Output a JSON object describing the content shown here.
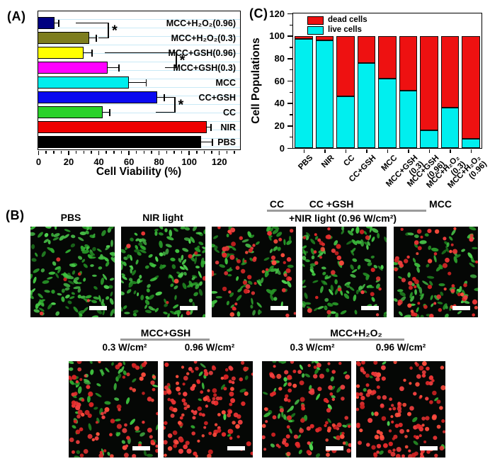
{
  "panels": {
    "a": "(A)",
    "b": "(B)",
    "c": "(C)"
  },
  "colors": {
    "grid_stripe": "#c9e9f6",
    "dead_cells": "#ee1111",
    "live_cells": "#00efef",
    "header_underline": "#9b9b9b",
    "scale_bar": "#ffffff"
  },
  "chart_data": [
    {
      "id": "A",
      "type": "bar",
      "orientation": "horizontal",
      "xlabel": "Cell Viability (%)",
      "categories": [
        "MCC+H₂O₂(0.96)",
        "MCC+H₂O₂(0.3)",
        "MCC+GSH(0.96)",
        "MCC+GSH(0.3)",
        "MCC",
        "CC+GSH",
        "CC",
        "NIR",
        "PBS"
      ],
      "values": [
        11,
        34,
        30,
        46,
        60,
        79,
        43,
        112,
        108
      ],
      "errors": [
        3,
        5,
        6,
        8,
        12,
        5,
        5,
        3,
        8
      ],
      "colors": [
        "#000080",
        "#7d7d1e",
        "#ffff00",
        "#ff00ff",
        "#00eeee",
        "#0a0af0",
        "#2bd22b",
        "#ee0000",
        "#000000"
      ],
      "xlim": [
        0,
        134
      ],
      "x_ticks": [
        0,
        20,
        40,
        60,
        80,
        100,
        120
      ],
      "x_minor_step": 5,
      "grid": "light-blue horizontal stripes",
      "significance": [
        {
          "pair": [
            "MCC+H₂O₂(0.96)",
            "MCC+H₂O₂(0.3)"
          ],
          "rowA": 0,
          "rowB": 1,
          "xStartA": 25,
          "xStartB": 40,
          "xEnd": 47,
          "symbol": "*"
        },
        {
          "pair": [
            "MCC+GSH(0.96)",
            "MCC+GSH(0.3)"
          ],
          "rowA": 2,
          "rowB": 3,
          "xStartA": 44,
          "xStartB": 84,
          "xEnd": 92,
          "symbol": "*"
        },
        {
          "pair": [
            "CC+GSH",
            "CC"
          ],
          "rowA": 5,
          "rowB": 6,
          "xStartA": 79,
          "xStartB": 78,
          "xEnd": 91,
          "symbol": "*"
        }
      ]
    },
    {
      "id": "C",
      "type": "stacked-bar",
      "orientation": "vertical",
      "ylabel": "Cell Populations",
      "categories": [
        "PBS",
        "NIR",
        "CC",
        "CC+GSH",
        "MCC",
        "MCC+GSH\n(0.3)",
        "MCC+GSH\n(0.96)",
        "MCC+H₂O₂\n(0.3)",
        "MCC+H₂O₂\n(0.96)"
      ],
      "series": [
        {
          "name": "dead cells",
          "color": "#ee1111",
          "values": [
            3,
            4,
            54,
            24,
            38,
            49,
            84,
            64,
            92
          ]
        },
        {
          "name": "live cells",
          "color": "#00efef",
          "values": [
            97,
            96,
            46,
            76,
            62,
            51,
            16,
            36,
            8
          ]
        }
      ],
      "ylim": [
        0,
        120
      ],
      "y_ticks": [
        0,
        20,
        40,
        60,
        80,
        100,
        120
      ],
      "y_minor_step": 10,
      "legend_position": "top-left"
    }
  ],
  "panelB": {
    "headers": {
      "pbs": "PBS",
      "nir": "NIR light",
      "group_items": [
        "CC",
        "CC +GSH",
        "MCC"
      ],
      "group_sub": "+NIR light (0.96 W/cm²)"
    },
    "row2_groups": [
      {
        "title": "MCC+GSH",
        "powers": [
          "0.3 W/cm²",
          "0.96 W/cm²"
        ]
      },
      {
        "title": "MCC+H₂O₂",
        "powers": [
          "0.3 W/cm²",
          "0.96 W/cm²"
        ]
      }
    ],
    "images": [
      {
        "id": "pbs",
        "green": 150,
        "red": 6
      },
      {
        "id": "nir-light",
        "green": 150,
        "red": 8
      },
      {
        "id": "cc-nir",
        "green": 85,
        "red": 55
      },
      {
        "id": "cc-gsh-nir",
        "green": 115,
        "red": 30
      },
      {
        "id": "mcc-nir",
        "green": 85,
        "red": 62
      },
      {
        "id": "mcc-gsh-0.3",
        "green": 62,
        "red": 88
      },
      {
        "id": "mcc-gsh-0.96",
        "green": 14,
        "red": 135
      },
      {
        "id": "mcc-h2o2-0.3",
        "green": 55,
        "red": 95
      },
      {
        "id": "mcc-h2o2-0.96",
        "green": 10,
        "red": 145
      }
    ]
  }
}
